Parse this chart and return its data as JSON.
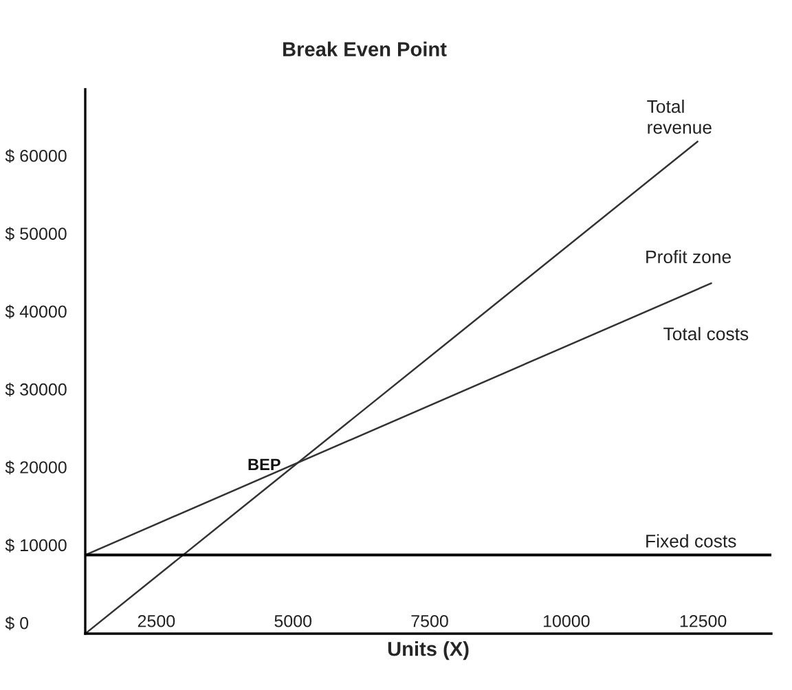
{
  "chart_data": {
    "type": "line",
    "title": "Break Even Point",
    "xlabel": "Units (X)",
    "xlim": [
      1200,
      13750
    ],
    "xticks": [
      2500,
      5000,
      7500,
      10000,
      12500
    ],
    "ylim": [
      -1400,
      68500
    ],
    "yticks": [
      {
        "value": 0,
        "label": "$ 0"
      },
      {
        "value": 10000,
        "label": "$ 10000"
      },
      {
        "value": 20000,
        "label": "$ 20000"
      },
      {
        "value": 30000,
        "label": "$ 30000"
      },
      {
        "value": 40000,
        "label": "$ 40000"
      },
      {
        "value": 50000,
        "label": "$ 50000"
      },
      {
        "value": 60000,
        "label": "$ 60000"
      }
    ],
    "series": [
      {
        "name": "Total revenue",
        "color": "#333333",
        "x": [
          1200,
          12400
        ],
        "values": [
          -1400,
          61800
        ]
      },
      {
        "name": "Total costs",
        "color": "#333333",
        "x": [
          1200,
          12650
        ],
        "values": [
          8700,
          43600
        ]
      },
      {
        "name": "Fixed costs",
        "color": "#000000",
        "x": [
          1200,
          13750
        ],
        "values": [
          8700,
          8700
        ]
      }
    ],
    "annotations": [
      {
        "text": "BEP",
        "x": 5080,
        "y": 20500
      },
      "Profit zone"
    ],
    "grid": false,
    "legend": false,
    "marker": "none",
    "line_style": "solid"
  }
}
